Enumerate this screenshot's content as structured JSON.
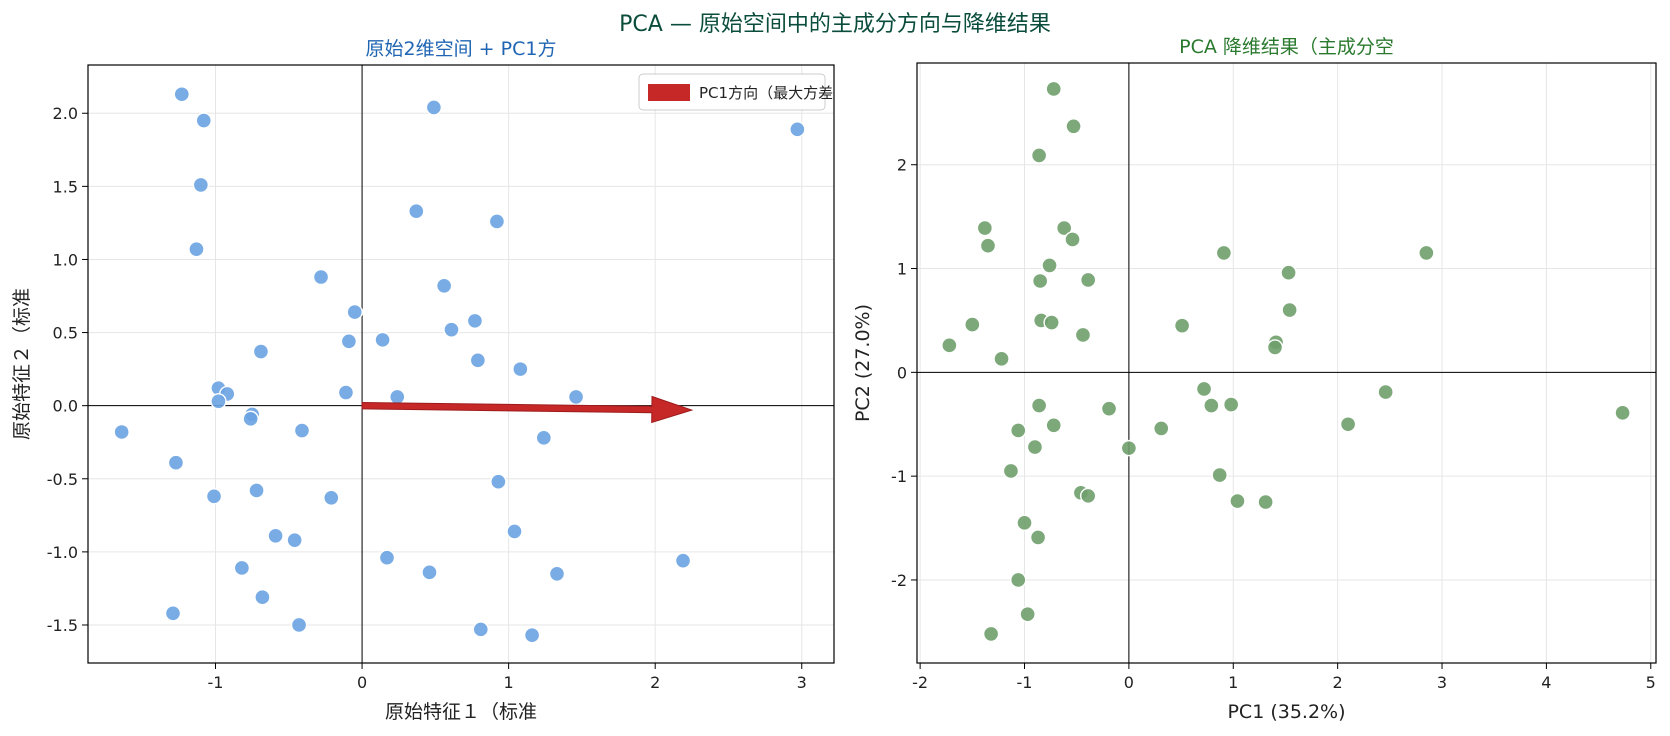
{
  "figure": {
    "title": "PCA — 原始空间中的主成分方向与降维结果"
  },
  "colors": {
    "title": "#0b4d3c",
    "left_title": "#1f65b3",
    "right_title": "#2a7a2e",
    "left_points": "#6aa3e2",
    "right_points": "#6f9f6c",
    "arrow": "#c62828",
    "grid": "#e6e6e6"
  },
  "chart_data": [
    {
      "type": "scatter",
      "title": "原始2维空间 + PC1方",
      "xlabel": "原始特征１（标准",
      "ylabel": "原始特征２（标准",
      "xlim": [
        -1.87,
        3.22
      ],
      "ylim": [
        -1.76,
        2.33
      ],
      "xticks": [
        -1,
        0,
        1,
        2,
        3
      ],
      "xtick_labels": [
        "-1",
        "0",
        "1",
        "2",
        "3"
      ],
      "yticks": [
        -1.5,
        -1.0,
        -0.5,
        0.0,
        0.5,
        1.0,
        1.5,
        2.0
      ],
      "ytick_labels": [
        "-1.5",
        "-1.0",
        "-0.5",
        "0.0",
        "0.5",
        "1.0",
        "1.5",
        "2.0"
      ],
      "grid": true,
      "legend": {
        "position": "top-right",
        "entries": [
          "PC1方向（最大方差"
        ]
      },
      "arrow": {
        "name": "PC1方向（最大方差",
        "from": [
          0,
          0
        ],
        "to": [
          2.25,
          -0.03
        ]
      },
      "points": [
        [
          -1.23,
          2.13
        ],
        [
          -1.08,
          1.95
        ],
        [
          -1.1,
          1.51
        ],
        [
          -1.13,
          1.07
        ],
        [
          -0.28,
          0.88
        ],
        [
          -0.05,
          0.64
        ],
        [
          -0.69,
          0.37
        ],
        [
          -0.09,
          0.44
        ],
        [
          -0.98,
          0.12
        ],
        [
          -0.92,
          0.08
        ],
        [
          -0.98,
          0.03
        ],
        [
          -0.11,
          0.09
        ],
        [
          -0.75,
          -0.06
        ],
        [
          -0.76,
          -0.09
        ],
        [
          -1.64,
          -0.18
        ],
        [
          -0.41,
          -0.17
        ],
        [
          -1.27,
          -0.39
        ],
        [
          -0.72,
          -0.58
        ],
        [
          -1.01,
          -0.62
        ],
        [
          -0.21,
          -0.63
        ],
        [
          -0.59,
          -0.89
        ],
        [
          -0.46,
          -0.92
        ],
        [
          -0.82,
          -1.11
        ],
        [
          -0.68,
          -1.31
        ],
        [
          -1.29,
          -1.42
        ],
        [
          -0.43,
          -1.5
        ],
        [
          0.49,
          2.04
        ],
        [
          0.37,
          1.33
        ],
        [
          0.92,
          1.26
        ],
        [
          0.56,
          0.82
        ],
        [
          0.77,
          0.58
        ],
        [
          0.61,
          0.52
        ],
        [
          0.14,
          0.45
        ],
        [
          0.79,
          0.31
        ],
        [
          1.08,
          0.25
        ],
        [
          0.24,
          0.06
        ],
        [
          1.46,
          0.06
        ],
        [
          1.24,
          -0.22
        ],
        [
          0.93,
          -0.52
        ],
        [
          1.04,
          -0.86
        ],
        [
          0.17,
          -1.04
        ],
        [
          0.46,
          -1.14
        ],
        [
          1.33,
          -1.15
        ],
        [
          0.81,
          -1.53
        ],
        [
          1.16,
          -1.57
        ],
        [
          2.97,
          1.89
        ],
        [
          2.19,
          -1.06
        ]
      ]
    },
    {
      "type": "scatter",
      "title": "PCA 降维结果（主成分空",
      "xlabel": "PC1 (35.2%)",
      "ylabel": "PC2 (27.0%)",
      "xlim": [
        -2.03,
        5.05
      ],
      "ylim": [
        -2.8,
        2.98
      ],
      "xticks": [
        -2,
        -1,
        0,
        1,
        2,
        3,
        4,
        5
      ],
      "xtick_labels": [
        "-2",
        "-1",
        "0",
        "1",
        "2",
        "3",
        "4",
        "5"
      ],
      "yticks": [
        -2,
        -1,
        0,
        1,
        2
      ],
      "ytick_labels": [
        "-2",
        "-1",
        "0",
        "1",
        "2"
      ],
      "grid": true,
      "points": [
        [
          -0.72,
          2.73
        ],
        [
          -0.53,
          2.37
        ],
        [
          -0.86,
          2.09
        ],
        [
          -1.38,
          1.39
        ],
        [
          -0.62,
          1.39
        ],
        [
          -0.54,
          1.28
        ],
        [
          -1.35,
          1.22
        ],
        [
          -0.76,
          1.03
        ],
        [
          -0.85,
          0.88
        ],
        [
          -0.39,
          0.89
        ],
        [
          -1.72,
          0.26
        ],
        [
          -1.5,
          0.46
        ],
        [
          -0.84,
          0.5
        ],
        [
          -0.74,
          0.48
        ],
        [
          -0.44,
          0.36
        ],
        [
          -1.22,
          0.13
        ],
        [
          0.91,
          1.15
        ],
        [
          1.53,
          0.96
        ],
        [
          1.54,
          0.6
        ],
        [
          0.51,
          0.45
        ],
        [
          1.41,
          0.29
        ],
        [
          1.4,
          0.24
        ],
        [
          2.85,
          1.15
        ],
        [
          0.72,
          -0.16
        ],
        [
          0.79,
          -0.32
        ],
        [
          0.98,
          -0.31
        ],
        [
          2.46,
          -0.19
        ],
        [
          2.1,
          -0.5
        ],
        [
          4.73,
          -0.39
        ],
        [
          0.31,
          -0.54
        ],
        [
          0.0,
          -0.73
        ],
        [
          0.87,
          -0.99
        ],
        [
          1.04,
          -1.24
        ],
        [
          1.31,
          -1.25
        ],
        [
          -0.86,
          -0.32
        ],
        [
          -0.19,
          -0.35
        ],
        [
          -0.72,
          -0.51
        ],
        [
          -1.06,
          -0.56
        ],
        [
          -0.9,
          -0.72
        ],
        [
          -1.13,
          -0.95
        ],
        [
          -0.46,
          -1.16
        ],
        [
          -0.39,
          -1.19
        ],
        [
          -1.0,
          -1.45
        ],
        [
          -0.87,
          -1.59
        ],
        [
          -1.06,
          -2.0
        ],
        [
          -0.97,
          -2.33
        ],
        [
          -1.32,
          -2.52
        ]
      ]
    }
  ]
}
